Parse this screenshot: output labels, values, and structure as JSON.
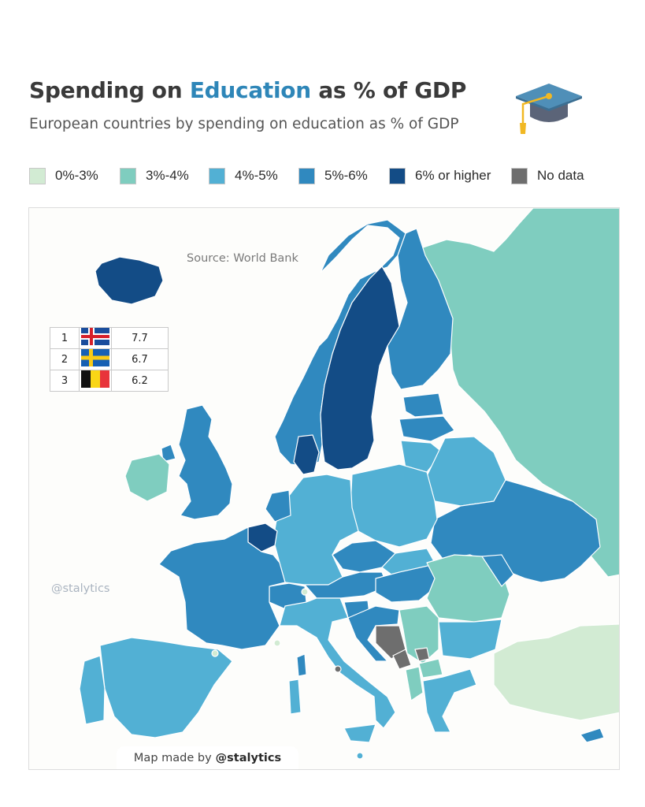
{
  "header": {
    "title_prefix": "Spending on ",
    "title_highlight": "Education",
    "title_suffix": " as % of GDP",
    "subtitle": "European countries by spending on education as % of GDP",
    "highlight_color": "#2e86b8"
  },
  "legend": [
    {
      "label": "0%-3%",
      "color": "#d2ebd3"
    },
    {
      "label": "3%-4%",
      "color": "#7fcdbf"
    },
    {
      "label": "4%-5%",
      "color": "#52b0d4"
    },
    {
      "label": "5%-6%",
      "color": "#3089bf"
    },
    {
      "label": "6% or higher",
      "color": "#134c86"
    },
    {
      "label": "No data",
      "color": "#6e6e6e"
    }
  ],
  "map": {
    "source": "Source: World Bank",
    "watermark": "@stalytics",
    "credit_prefix": "Map made by",
    "credit_handle": "@stalytics",
    "colors": {
      "0-3": "#d2ebd3",
      "3-4": "#7fcdbf",
      "4-5": "#52b0d4",
      "5-6": "#3089bf",
      "6+": "#134c86",
      "no_data": "#6e6e6e",
      "sea": "#fdfdfb"
    }
  },
  "ranking": [
    {
      "rank": "1",
      "country_flag": "iceland-flag",
      "value": "7.7"
    },
    {
      "rank": "2",
      "country_flag": "sweden-flag",
      "value": "6.7"
    },
    {
      "rank": "3",
      "country_flag": "belgium-flag",
      "value": "6.2"
    }
  ]
}
